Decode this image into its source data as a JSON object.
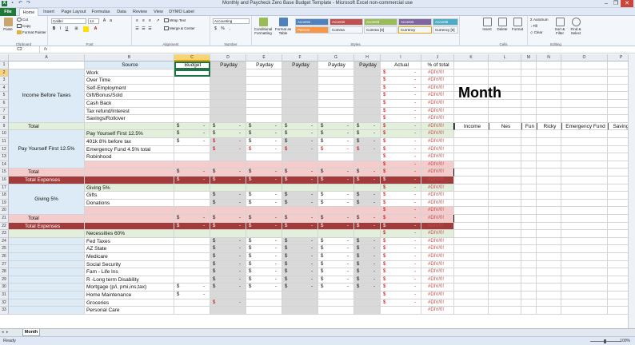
{
  "window": {
    "title": "Monthly and Paycheck Zero Base Budget Template  -  Microsoft Excel non-commercial use"
  },
  "ribbon_tabs": [
    "File",
    "Home",
    "Insert",
    "Page Layout",
    "Formulas",
    "Data",
    "Review",
    "View",
    "DYMO Label"
  ],
  "clipboard": {
    "cut": "Cut",
    "copy": "Copy",
    "format_painter": "Format Painter",
    "paste": "Paste",
    "label": "Clipboard"
  },
  "font": {
    "name": "Calibri",
    "size": "14",
    "label": "Font"
  },
  "alignment": {
    "wrap": "Wrap Text",
    "merge": "Merge & Center",
    "label": "Alignment"
  },
  "number": {
    "format": "Accounting",
    "label": "Number"
  },
  "styles": {
    "conditional": "Conditional Formatting",
    "table": "Format as Table",
    "accents1": [
      "Accent1",
      "Accent2",
      "Accent3",
      "Accent4",
      "Accent5"
    ],
    "accents2": [
      "Percent",
      "Comma",
      "Comma [0]",
      "Currency",
      "Currency [0]"
    ],
    "label": "Styles"
  },
  "accent_colors": [
    "#4f81bd",
    "#c0504d",
    "#9bbb59",
    "#8064a2",
    "#4bacc6"
  ],
  "cells_group": {
    "insert": "Insert",
    "delete": "Delete",
    "format": "Format",
    "label": "Cells"
  },
  "editing": {
    "autosum": "AutoSum",
    "fill": "Fill",
    "clear": "Clear",
    "sort": "Sort & Filter",
    "find": "Find & Select",
    "label": "Editing"
  },
  "formula_bar": {
    "name_box": "C2",
    "fx": "fx"
  },
  "columns": [
    "A",
    "B",
    "C",
    "D",
    "E",
    "F",
    "G",
    "H",
    "I",
    "J",
    "K",
    "L",
    "M",
    "N",
    "O",
    "P"
  ],
  "headers": {
    "source": "Source",
    "budget": "Budget",
    "payday": "Payday",
    "actual": "Actual",
    "pct": "% of total"
  },
  "month_label": "Month",
  "side_headers": [
    "Income",
    "Nes",
    "Fun",
    "Ricky",
    "Emergency Fund",
    "Savings"
  ],
  "section_labels": {
    "income": "Income Before Taxes",
    "pyf": "Pay Yourself First 12.5%",
    "giving": "Giving 5%"
  },
  "rows": [
    {
      "n": "2",
      "b": "Work"
    },
    {
      "n": "3",
      "b": "Over Time"
    },
    {
      "n": "4",
      "b": "Self-Employment"
    },
    {
      "n": "5",
      "b": "Gift/Bonus/Sold"
    },
    {
      "n": "6",
      "b": "Cash Back"
    },
    {
      "n": "7",
      "b": "Tax refund/Interest"
    },
    {
      "n": "8",
      "b": "Savings/Rollover"
    },
    {
      "n": "9",
      "a": "Total",
      "b": ""
    },
    {
      "n": "10",
      "b": "Pay Yourself First 12.5%"
    },
    {
      "n": "11",
      "b": "401k 8%  before tax"
    },
    {
      "n": "12",
      "b": "Emergency Fund 4.5% total"
    },
    {
      "n": "13",
      "b": "Robinhood"
    },
    {
      "n": "14",
      "b": ""
    },
    {
      "n": "15",
      "a": "Total",
      "b": ""
    },
    {
      "n": "16",
      "a": "Total Expenses",
      "b": ""
    },
    {
      "n": "17",
      "b": "Giving 5%"
    },
    {
      "n": "18",
      "b": "Gifts"
    },
    {
      "n": "19",
      "b": "Donations"
    },
    {
      "n": "20",
      "b": ""
    },
    {
      "n": "21",
      "a": "Total",
      "b": ""
    },
    {
      "n": "22",
      "a": "Total Expenses",
      "b": ""
    },
    {
      "n": "23",
      "b": "Necessities 60%"
    },
    {
      "n": "24",
      "b": "Fed Taxes"
    },
    {
      "n": "25",
      "b": "AZ State"
    },
    {
      "n": "26",
      "b": "Medicare"
    },
    {
      "n": "27",
      "b": "Social Security"
    },
    {
      "n": "28",
      "b": "Fam - Life Ins"
    },
    {
      "n": "29",
      "b": "R -Long term Disability"
    },
    {
      "n": "30",
      "b": "Mortgage (p/i, pmi,ins,tax)"
    },
    {
      "n": "31",
      "b": "Home Maintenance"
    },
    {
      "n": "32",
      "b": "Groceries"
    },
    {
      "n": "33",
      "b": "Personal Care"
    }
  ],
  "money": {
    "dollar": "$",
    "dash": "-",
    "err": "#DIV/0!"
  },
  "sheet_tab": "Month",
  "status": {
    "ready": "Ready",
    "zoom": "100%"
  }
}
